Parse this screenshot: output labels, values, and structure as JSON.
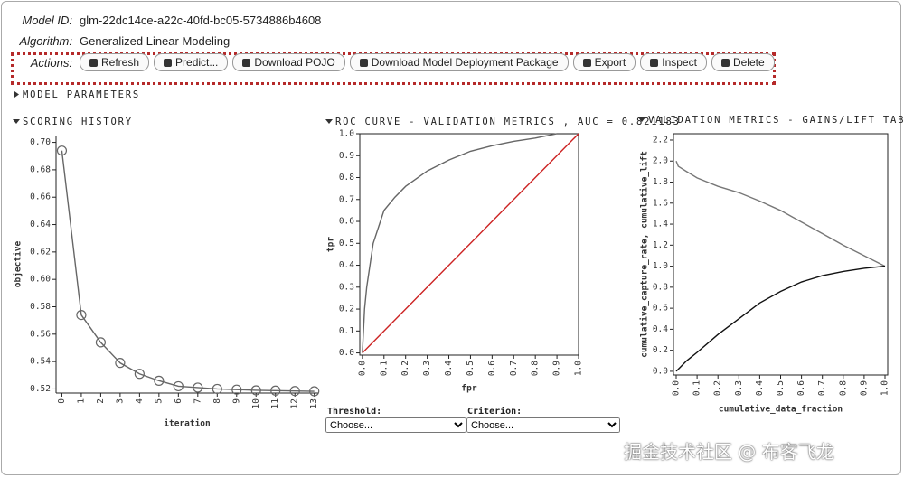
{
  "model_id_label": "Model ID:",
  "model_id": "glm-22dc14ce-a22c-40fd-bc05-5734886b4608",
  "algorithm_label": "Algorithm:",
  "algorithm": "Generalized Linear Modeling",
  "actions_label": "Actions:",
  "actions": [
    "Refresh",
    "Predict...",
    "Download POJO",
    "Download Model Deployment Package",
    "Export",
    "Inspect",
    "Delete"
  ],
  "model_parameters": "MODEL PARAMETERS",
  "threshold_label": "Threshold:",
  "threshold_choice": "Choose...",
  "criterion_label": "Criterion:",
  "criterion_choice": "Choose...",
  "watermark": "掘金技术社区 @ 布客飞龙",
  "chart_data": [
    {
      "type": "line",
      "title": "SCORING HISTORY",
      "x_label": "iteration",
      "y_label": "objective",
      "x": [
        0,
        1,
        2,
        3,
        4,
        5,
        6,
        7,
        8,
        9,
        10,
        11,
        12,
        13
      ],
      "values": [
        0.694,
        0.574,
        0.554,
        0.539,
        0.531,
        0.526,
        0.522,
        0.521,
        0.52,
        0.5195,
        0.519,
        0.5188,
        0.5185,
        0.5183
      ],
      "color": "#666666",
      "marker": "circle",
      "frame": false,
      "xlim": [
        -0.3,
        13.2
      ],
      "xticks": [
        0,
        1,
        2,
        3,
        4,
        5,
        6,
        7,
        8,
        9,
        10,
        11,
        12,
        13
      ],
      "ylim": [
        0.517,
        0.705
      ],
      "yticks": [
        0.52,
        0.54,
        0.56,
        0.58,
        {
          "value": 0.6,
          "label": "0.60"
        },
        0.62,
        0.64,
        0.66,
        0.68,
        {
          "value": 0.7,
          "label": "0.70"
        }
      ]
    },
    {
      "type": "line",
      "title": "ROC CURVE - VALIDATION METRICS , AUC = 0.821183",
      "x_label": "fpr",
      "y_label": "tpr",
      "frame": true,
      "series": [
        {
          "color": "#666666",
          "x": [
            0,
            0.01,
            0.02,
            0.05,
            0.1,
            0.15,
            0.2,
            0.3,
            0.4,
            0.5,
            0.6,
            0.7,
            0.8,
            0.9,
            1.0
          ],
          "values": [
            0,
            0.2,
            0.3,
            0.5,
            0.65,
            0.71,
            0.76,
            0.83,
            0.88,
            0.92,
            0.945,
            0.965,
            0.98,
            1.0,
            1.0
          ]
        },
        {
          "color": "#cc2222",
          "x": [
            0,
            1.0
          ],
          "values": [
            0,
            1.0
          ]
        }
      ],
      "xlim": [
        -0.012,
        1.0
      ],
      "xticks": [
        {
          "value": 0,
          "label": "0.0"
        },
        0.1,
        0.2,
        0.3,
        0.4,
        0.5,
        0.6,
        0.7,
        0.8,
        0.9,
        {
          "value": 1.0,
          "label": "1.0"
        }
      ],
      "ylim": [
        -0.01,
        1.0
      ],
      "yticks": [
        {
          "value": 0,
          "label": "0.0"
        },
        0.1,
        0.2,
        0.3,
        0.4,
        0.5,
        0.6,
        0.7,
        0.8,
        0.9,
        {
          "value": 1.0,
          "label": "1.0"
        }
      ]
    },
    {
      "type": "line",
      "title": "VALIDATION METRICS - GAINS/LIFT TABLE",
      "x_label": "cumulative_data_fraction",
      "y_label": "cumulative_capture_rate, cumulative_lift",
      "frame": true,
      "series": [
        {
          "color": "#777777",
          "x": [
            0,
            0.01,
            0.05,
            0.1,
            0.2,
            0.3,
            0.4,
            0.5,
            0.6,
            0.7,
            0.8,
            0.9,
            1.0
          ],
          "values": [
            2.0,
            1.95,
            1.9,
            1.84,
            1.76,
            1.7,
            1.62,
            1.53,
            1.42,
            1.31,
            1.2,
            1.1,
            1.0
          ]
        },
        {
          "color": "#111111",
          "x": [
            0,
            0.01,
            0.05,
            0.1,
            0.2,
            0.3,
            0.4,
            0.5,
            0.6,
            0.7,
            0.8,
            0.9,
            1.0
          ],
          "values": [
            0,
            0.02,
            0.1,
            0.18,
            0.35,
            0.5,
            0.65,
            0.76,
            0.85,
            0.91,
            0.95,
            0.98,
            1.0
          ]
        }
      ],
      "xlim": [
        -0.013,
        1.013
      ],
      "xticks": [
        {
          "value": 0,
          "label": "0.0"
        },
        0.1,
        0.2,
        0.3,
        0.4,
        0.5,
        0.6,
        0.7,
        0.8,
        0.9,
        {
          "value": 1.0,
          "label": "1.0"
        }
      ],
      "ylim": [
        -0.035,
        2.26
      ],
      "yticks": [
        {
          "value": 0,
          "label": "0.0"
        },
        0.2,
        0.4,
        0.6,
        0.8,
        {
          "value": 1.0,
          "label": "1.0"
        },
        1.2,
        1.4,
        1.6,
        1.8,
        {
          "value": 2.0,
          "label": "2.0"
        },
        2.2
      ]
    }
  ]
}
